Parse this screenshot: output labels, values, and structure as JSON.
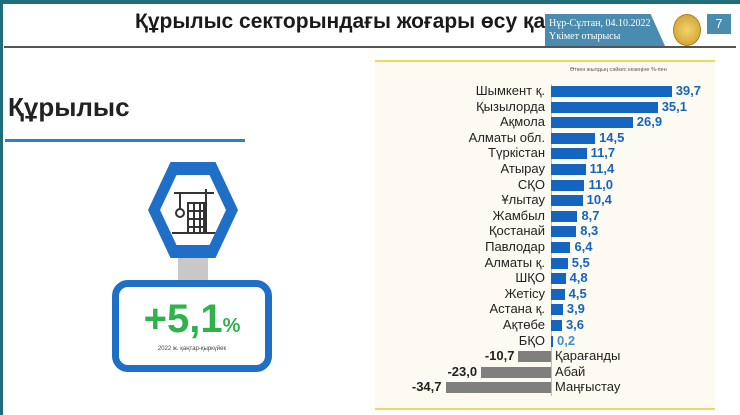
{
  "header": {
    "title": "Құрылыс секторындағы жоғары өсу қар",
    "location_date": "Нұр-Сұлтан, 04.10.2022",
    "event": "Үкімет отырысы",
    "page_number": "7"
  },
  "section": {
    "title": "Құрылыс",
    "growth_value": "+5,1",
    "growth_unit": "%",
    "period": "2022 ж. қаңтар-қыркүйек",
    "icon": "construction-crane-icon"
  },
  "colors": {
    "positive": "#1565c0",
    "negative": "#7f7f7f",
    "accent": "#1f6fc7",
    "growth": "#2db34a"
  },
  "chart_data": {
    "type": "bar",
    "orientation": "horizontal",
    "title": "Өткен жылдың сәйкес кезеңіне %-пен",
    "categories": [
      "Шымкент қ.",
      "Қызылорда",
      "Ақмола",
      "Алматы обл.",
      "Түркістан",
      "Атырау",
      "СҚО",
      "Ұлытау",
      "Жамбыл",
      "Қостанай",
      "Павлодар",
      "Алматы қ.",
      "ШҚО",
      "Жетісу",
      "Астана қ.",
      "Ақтөбе",
      "БҚО",
      "Қарағанды",
      "Абай",
      "Маңғыстау"
    ],
    "values": [
      39.7,
      35.1,
      26.9,
      14.5,
      11.7,
      11.4,
      11.0,
      10.4,
      8.7,
      8.3,
      6.4,
      5.5,
      4.8,
      4.5,
      3.9,
      3.6,
      0.2,
      -10.7,
      -23.0,
      -34.7
    ],
    "labels": [
      "39,7",
      "35,1",
      "26,9",
      "14,5",
      "11,7",
      "11,4",
      "11,0",
      "10,4",
      "8,7",
      "8,3",
      "6,4",
      "5,5",
      "4,8",
      "4,5",
      "3,9",
      "3,6",
      "0,2",
      "-10,7",
      "-23,0",
      "-34,7"
    ]
  }
}
